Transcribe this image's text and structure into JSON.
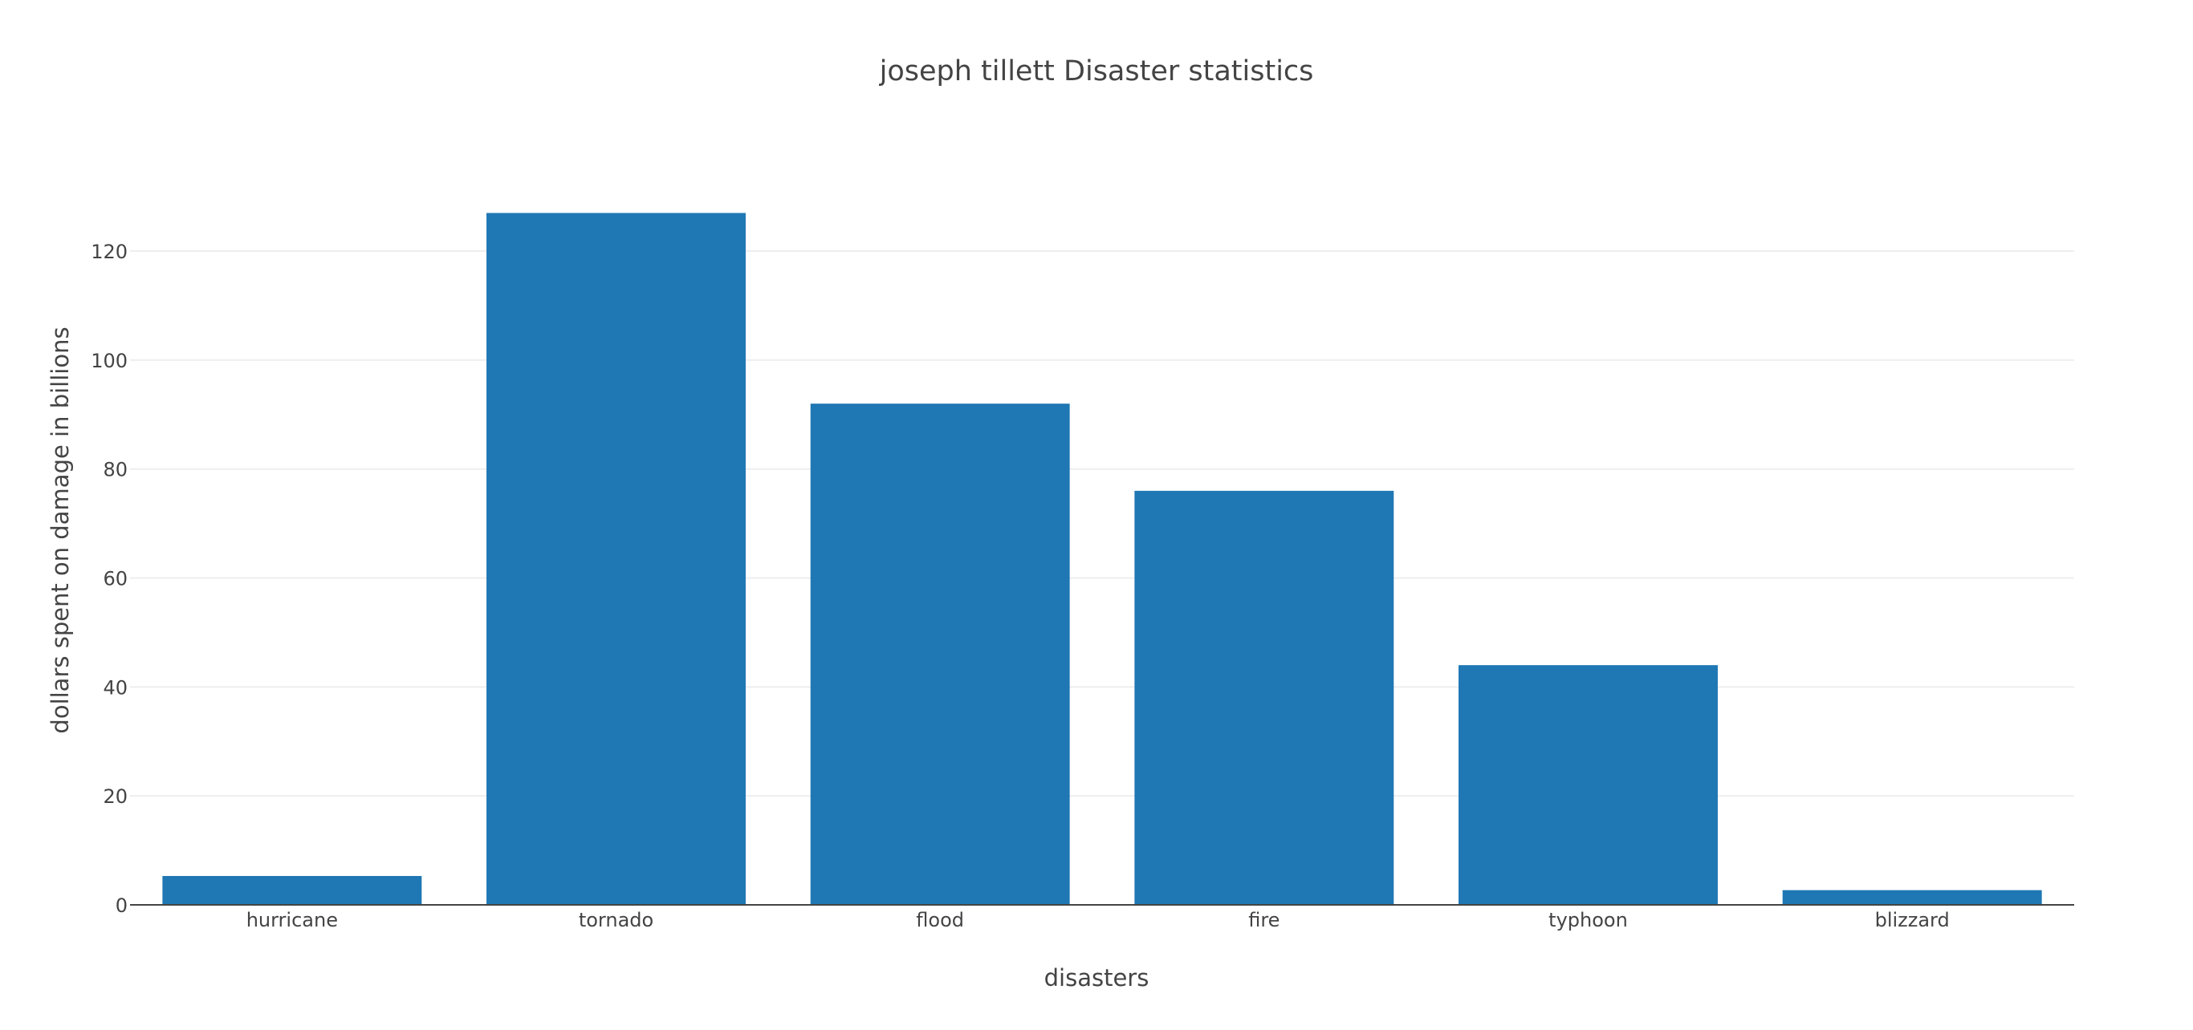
{
  "chart_data": {
    "type": "bar",
    "title": "joseph tillett Disaster statistics",
    "xlabel": "disasters",
    "ylabel": "dollars spent on damage in billions",
    "categories": [
      "hurricane",
      "tornado",
      "flood",
      "fire",
      "typhoon",
      "blizzard"
    ],
    "values": [
      5.3,
      127,
      92,
      76,
      44,
      2.7
    ],
    "ylim": [
      0,
      133.7
    ],
    "yticks": [
      0,
      20,
      40,
      60,
      80,
      100,
      120
    ],
    "grid": true,
    "bar_color": "#1f77b4",
    "grid_color": "#eeeeee",
    "axis_color": "#444444"
  }
}
